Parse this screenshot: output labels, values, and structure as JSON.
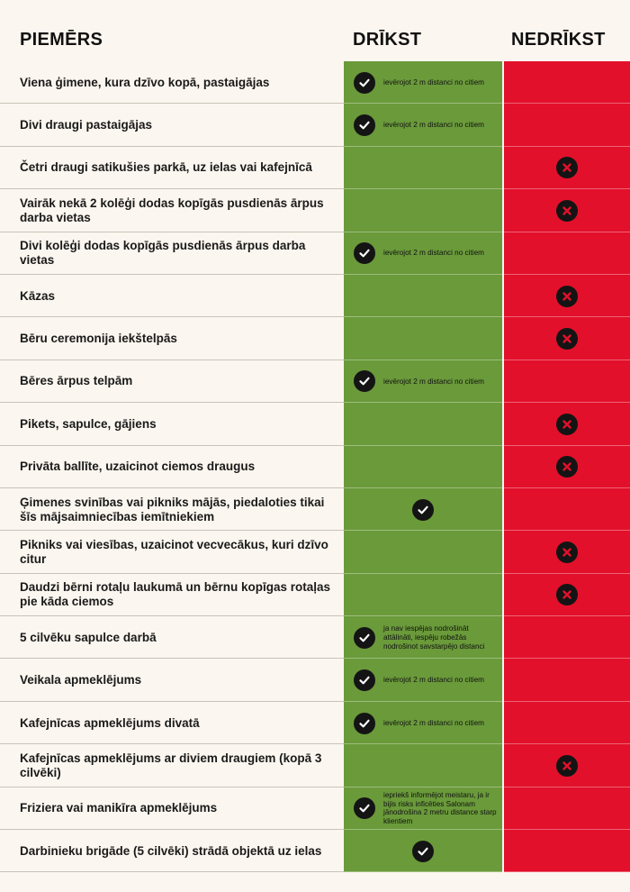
{
  "header": {
    "examples": "PIEMĒRS",
    "allowed": "DRĪKST",
    "forbidden": "NEDRĪKST"
  },
  "colors": {
    "allowed": "#6a9a3a",
    "forbidden": "#e3102b",
    "background": "#fbf6ef"
  },
  "rows": [
    {
      "text": "Viena ģimene, kura dzīvo kopā, pastaigājas",
      "allowed": true,
      "note": "ievērojot 2 m distanci no citiem"
    },
    {
      "text": "Divi draugi pastaigājas",
      "allowed": true,
      "note": "ievērojot 2 m distanci no citiem"
    },
    {
      "text": "Četri draugi satikušies parkā, uz ielas vai kafejnīcā",
      "allowed": false,
      "note": ""
    },
    {
      "text": "Vairāk nekā 2 kolēģi dodas kopīgās pusdienās ārpus darba vietas",
      "allowed": false,
      "note": ""
    },
    {
      "text": "Divi kolēģi dodas kopīgās pusdienās ārpus darba vietas",
      "allowed": true,
      "note": "ievērojot 2 m distanci no citiem"
    },
    {
      "text": "Kāzas",
      "allowed": false,
      "note": ""
    },
    {
      "text": "Bēru ceremonija iekštelpās",
      "allowed": false,
      "note": ""
    },
    {
      "text": "Bēres ārpus telpām",
      "allowed": true,
      "note": "ievērojot 2 m distanci no citiem"
    },
    {
      "text": "Pikets, sapulce, gājiens",
      "allowed": false,
      "note": ""
    },
    {
      "text": "Privāta ballīte, uzaicinot  ciemos draugus",
      "allowed": false,
      "note": ""
    },
    {
      "text": "Ģimenes svinības vai pikniks mājās, piedaloties tikai šīs mājsaimniecības iemītniekiem",
      "allowed": true,
      "note": ""
    },
    {
      "text": "Pikniks vai viesības, uzaicinot vecvecākus, kuri dzīvo citur",
      "allowed": false,
      "note": ""
    },
    {
      "text": "Daudzi bērni rotaļu laukumā un bērnu kopīgas rotaļas pie kāda ciemos",
      "allowed": false,
      "note": ""
    },
    {
      "text": "5 cilvēku sapulce darbā",
      "allowed": true,
      "note": "ja nav iespējas nodrošināt attālināti, iespēju robežās nodrošinot savstarpējo distanci"
    },
    {
      "text": "Veikala apmeklējums",
      "allowed": true,
      "note": "ievērojot 2 m distanci no citiem"
    },
    {
      "text": "Kafejnīcas apmeklējums divatā",
      "allowed": true,
      "note": "ievērojot 2 m distanci no citiem"
    },
    {
      "text": "Kafejnīcas apmeklējums ar diviem draugiem (kopā 3 cilvēki)",
      "allowed": false,
      "note": ""
    },
    {
      "text": "Friziera vai manikīra apmeklējums",
      "allowed": true,
      "note": "iepriekš informējot meistaru, ja ir bijis risks inficēties Salonam jānodrošina 2 metru distance starp klientiem"
    },
    {
      "text": "Darbinieku brigāde (5 cilvēki) strādā objektā uz ielas",
      "allowed": true,
      "note": ""
    }
  ]
}
